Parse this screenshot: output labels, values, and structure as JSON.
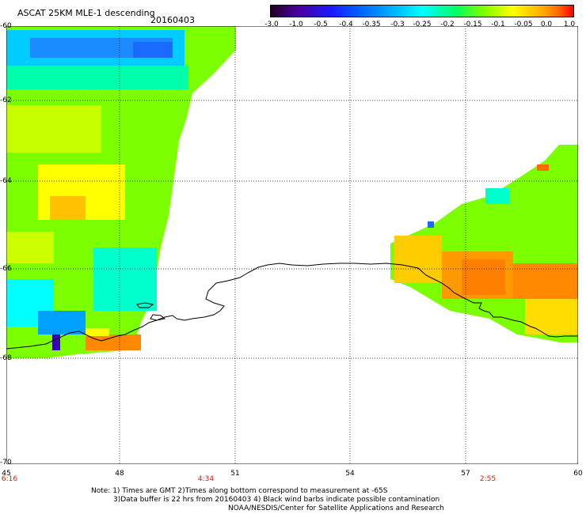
{
  "title": "ASCAT 25KM MLE-1 descending",
  "date": "20160403",
  "colorbar": {
    "labels": [
      "-3.0",
      "-1.0",
      "-0.5",
      "-0.4",
      "-0.35",
      "-0.3",
      "-0.25",
      "-0.2",
      "-0.15",
      "-0.1",
      "-0.05",
      "0.0",
      "1.0"
    ],
    "colors": [
      "#220022",
      "#4a00a0",
      "#1a1aff",
      "#0066ff",
      "#00b0ff",
      "#00ffff",
      "#00ff66",
      "#7cff00",
      "#ffff00",
      "#ffaa00",
      "#ff6a00",
      "#ff0000"
    ]
  },
  "lat_labels": [
    "-60",
    "-62",
    "-64",
    "-66",
    "-68",
    "-70"
  ],
  "lon_labels": [
    "45",
    "48",
    "51",
    "54",
    "57",
    "60"
  ],
  "time_labels": [
    "6:16",
    "4:34",
    "2:55"
  ],
  "notes": [
    "Note: 1) Times are GMT 2)Times along bottom correspond to measurement at -65S",
    "3)Data buffer is 22 hrs from 20160403 4) Black wind barbs indicate possible contamination",
    "NOAA/NESDIS/Center for Satellite Applications and Research"
  ]
}
